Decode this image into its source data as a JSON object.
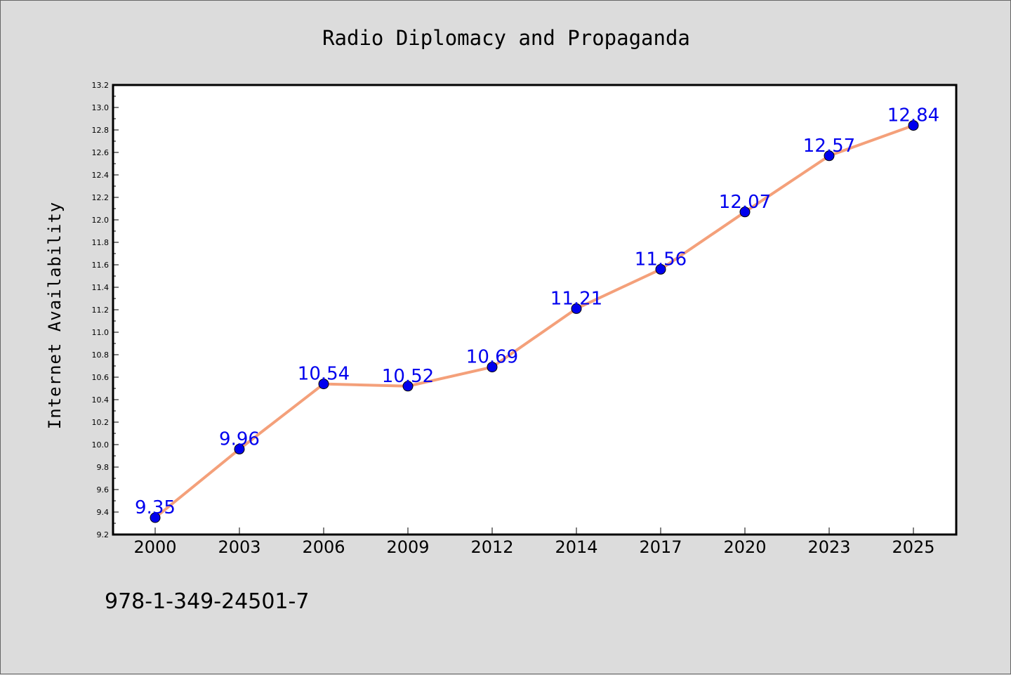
{
  "chart_data": {
    "type": "line",
    "title": "Radio Diplomacy and Propaganda",
    "xlabel": "",
    "ylabel": "Internet Availability",
    "categories": [
      "2000",
      "2003",
      "2006",
      "2009",
      "2012",
      "2014",
      "2017",
      "2020",
      "2023",
      "2025"
    ],
    "series": [
      {
        "values": [
          9.35,
          9.96,
          10.54,
          10.52,
          10.69,
          11.21,
          11.56,
          12.07,
          12.57,
          12.84
        ],
        "data_labels": [
          "9.35",
          "9.96",
          "10.54",
          "10.52",
          "10.69",
          "11.21",
          "11.56",
          "12.07",
          "12.57",
          "12.84"
        ],
        "line_color": "#f4a07a",
        "marker_color": "#0000ee",
        "label_color": "#0000ee"
      }
    ],
    "ylim": [
      9.2,
      13.2
    ],
    "yticks": [
      "9.2",
      "9.4",
      "9.6",
      "9.8",
      "10.0",
      "10.2",
      "10.4",
      "10.6",
      "10.8",
      "11.0",
      "11.2",
      "11.4",
      "11.6",
      "11.8",
      "12.0",
      "12.2",
      "12.4",
      "12.6",
      "12.8",
      "13.0",
      "13.2"
    ],
    "grid": false,
    "legend": "none"
  },
  "footer": {
    "isbn": "978-1-349-24501-7"
  },
  "colors": {
    "background": "#dcdcdc",
    "plot_background": "#ffffff"
  }
}
